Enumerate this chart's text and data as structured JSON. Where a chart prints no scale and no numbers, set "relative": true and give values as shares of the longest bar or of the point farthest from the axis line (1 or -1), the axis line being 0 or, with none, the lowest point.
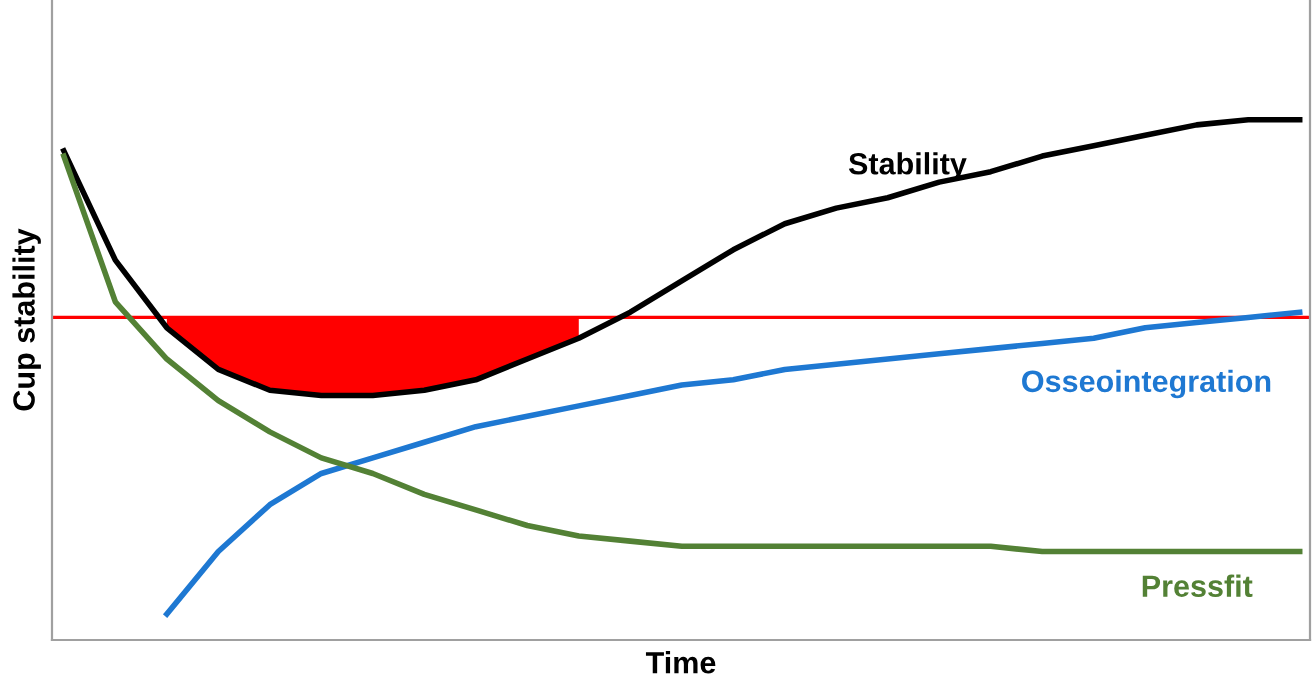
{
  "chart_data": {
    "type": "line",
    "relative": true,
    "xlabel": "Time",
    "ylabel": "Cup stability",
    "legend": false,
    "marker": "none",
    "line_style": "solid",
    "categories": [
      null,
      null,
      null,
      null,
      null,
      null,
      null,
      null,
      null,
      null,
      null,
      null,
      null,
      null,
      null,
      null,
      null,
      null,
      null,
      null,
      null,
      null,
      null,
      null,
      null
    ],
    "series": [
      {
        "name": "Stability",
        "color": "#000000",
        "values": [
          0.94,
          0.73,
          0.6,
          0.52,
          0.48,
          0.47,
          0.47,
          0.48,
          0.5,
          0.54,
          0.58,
          0.63,
          0.69,
          0.75,
          0.8,
          0.83,
          0.85,
          0.88,
          0.9,
          0.93,
          0.95,
          0.97,
          0.99,
          1.0,
          1.0
        ],
        "upper": [
          null,
          null,
          0.62,
          0.62,
          0.62,
          0.62,
          0.62,
          0.62,
          0.62,
          0.62,
          0.62,
          null,
          null,
          null,
          null,
          null,
          null,
          null,
          null,
          null,
          null,
          null,
          null,
          null,
          null
        ],
        "lower": [
          null,
          null,
          0.6,
          0.52,
          0.48,
          0.47,
          0.47,
          0.48,
          0.5,
          0.54,
          0.58,
          null,
          null,
          null,
          null,
          null,
          null,
          null,
          null,
          null,
          null,
          null,
          null,
          null,
          null
        ]
      },
      {
        "name": "Osseointegration",
        "color": "#1e78d2",
        "values": [
          null,
          null,
          0.05,
          0.17,
          0.26,
          0.32,
          0.35,
          0.38,
          0.41,
          0.43,
          0.45,
          0.47,
          0.49,
          0.5,
          0.52,
          0.53,
          0.54,
          0.55,
          0.56,
          0.57,
          0.58,
          0.6,
          0.61,
          0.62,
          0.63
        ]
      },
      {
        "name": "Pressfit",
        "color": "#538135",
        "values": [
          0.93,
          0.65,
          0.54,
          0.46,
          0.4,
          0.35,
          0.32,
          0.28,
          0.25,
          0.22,
          0.2,
          0.19,
          0.18,
          0.18,
          0.18,
          0.18,
          0.18,
          0.18,
          0.18,
          0.17,
          0.17,
          0.17,
          0.17,
          0.17,
          0.17
        ]
      }
    ],
    "ref_lines": [
      {
        "axis": "y",
        "value": 0.62,
        "color": "#ff0000"
      }
    ]
  }
}
